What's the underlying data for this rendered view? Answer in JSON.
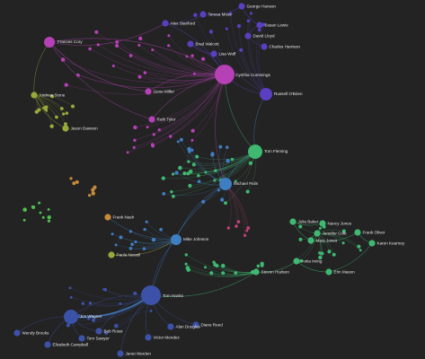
{
  "colors": {
    "background": "#232323",
    "magenta": "#b640b6",
    "indigo": "#5a3fc0",
    "green": "#3fb872",
    "steel": "#3f7ec0",
    "navy": "#3c52a8",
    "olive": "#9aaa3a",
    "bright_green": "#4fc04f",
    "orange": "#c88a3a",
    "pink": "#c0407a"
  },
  "graph": {
    "hubs": [
      {
        "id": "jane-cummings",
        "label": "Cynthia Cummings",
        "color": "magenta",
        "size": 11
      },
      {
        "id": "tom-hanks",
        "label": "Tom Hanks",
        "color": "navy",
        "size": 11
      },
      {
        "id": "michael-palin",
        "label": "Michael Palin",
        "color": "steel",
        "size": 7
      },
      {
        "id": "tom-fleming",
        "label": "Tom Fleming",
        "color": "green",
        "size": 8
      },
      {
        "id": "frances-cory",
        "label": "Frances Cory",
        "color": "magenta",
        "size": 6
      },
      {
        "id": "jim-wagner",
        "label": "Jim Wagner",
        "color": "navy",
        "size": 8
      },
      {
        "id": "russ-wright",
        "label": "Russell O'Brien",
        "color": "indigo",
        "size": 7
      },
      {
        "id": "mike-johnson",
        "label": "Mike Johnson",
        "color": "steel",
        "size": 6
      }
    ],
    "labeled_nodes": [
      {
        "id": "n-al",
        "label": "Alex Stanford",
        "color": "indigo"
      },
      {
        "id": "n-tm",
        "label": "Teresa Moss",
        "color": "indigo"
      },
      {
        "id": "n-gh",
        "label": "George Hanson",
        "color": "indigo"
      },
      {
        "id": "n-sl",
        "label": "Susan Lewis",
        "color": "indigo"
      },
      {
        "id": "n-dl",
        "label": "David Lloyd",
        "color": "indigo"
      },
      {
        "id": "n-bv",
        "label": "Brad Walcott",
        "color": "indigo"
      },
      {
        "id": "n-ch",
        "label": "Charles Harrison",
        "color": "indigo"
      },
      {
        "id": "n-lw",
        "label": "Lisa Wolf",
        "color": "indigo"
      },
      {
        "id": "n-gm",
        "label": "Gene Miller",
        "color": "magenta"
      },
      {
        "id": "n-rt",
        "label": "Ruth Tyler",
        "color": "magenta"
      },
      {
        "id": "n-as",
        "label": "Andrew Stone",
        "color": "olive"
      },
      {
        "id": "n-jd",
        "label": "Jason Dawson",
        "color": "olive"
      },
      {
        "id": "n-fn",
        "label": "Frank Nash",
        "color": "orange"
      },
      {
        "id": "n-pn",
        "label": "Paula Newell",
        "color": "olive"
      },
      {
        "id": "n-jb",
        "label": "Julia Baker",
        "color": "green"
      },
      {
        "id": "n-nj",
        "label": "Nancy Jones",
        "color": "green"
      },
      {
        "id": "n-mj",
        "label": "Mary Jones",
        "color": "green"
      },
      {
        "id": "n-kr",
        "label": "Karen Kearney",
        "color": "green"
      },
      {
        "id": "n-fo",
        "label": "Frank Oliver",
        "color": "green"
      },
      {
        "id": "n-jc",
        "label": "Jennifer Cole",
        "color": "green"
      },
      {
        "id": "n-ai",
        "label": "Anita Irving",
        "color": "green"
      },
      {
        "id": "n-em",
        "label": "Erin Mason",
        "color": "green"
      },
      {
        "id": "n-sh",
        "label": "Steven Hudson",
        "color": "green"
      },
      {
        "id": "n-ad",
        "label": "Alan Douglas",
        "color": "navy"
      },
      {
        "id": "n-br",
        "label": "Bob Rossi",
        "color": "navy"
      },
      {
        "id": "n-ts",
        "label": "Tom Sawyer",
        "color": "navy"
      },
      {
        "id": "n-wb",
        "label": "Wendy Brooks",
        "color": "navy"
      },
      {
        "id": "n-vm",
        "label": "Victor Mendez",
        "color": "navy"
      },
      {
        "id": "n-ec",
        "label": "Elizabeth Campbell",
        "color": "navy"
      },
      {
        "id": "n-dr",
        "label": "Diane Reed",
        "color": "navy"
      },
      {
        "id": "n-jw",
        "label": "Janet Warden",
        "color": "navy"
      }
    ]
  }
}
